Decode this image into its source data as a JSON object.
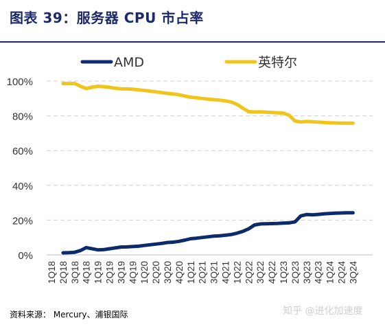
{
  "header": {
    "title": "图表 39：服务器 CPU 市占率"
  },
  "footer": {
    "source": "资料来源：  Mercury、浦银国际",
    "watermark": "知乎 @进化加速度"
  },
  "colors": {
    "amd": "#0c2b6b",
    "intel": "#f0c419",
    "grid": "#d0d0d0",
    "title": "#1c2a6b"
  },
  "chart_data": {
    "type": "line",
    "title": "",
    "xlabel": "",
    "ylabel": "",
    "ylim": [
      0,
      100
    ],
    "yticks": [
      "0%",
      "20%",
      "40%",
      "60%",
      "80%",
      "100%"
    ],
    "ytick_values": [
      0,
      20,
      40,
      60,
      80,
      100
    ],
    "grid": "horizontal-dashed",
    "legend": "top",
    "categories": [
      "1Q18",
      "2Q18",
      "3Q18",
      "4Q18",
      "1Q19",
      "2Q19",
      "3Q19",
      "4Q19",
      "1Q20",
      "2Q20",
      "3Q20",
      "4Q20",
      "1Q21",
      "2Q21",
      "3Q21",
      "4Q21",
      "1Q22",
      "2Q22",
      "3Q22",
      "4Q22",
      "1Q23",
      "2Q23",
      "3Q23",
      "4Q23",
      "1Q24",
      "2Q24",
      "3Q24"
    ],
    "x": [
      "2Q18",
      "2Q18",
      "3Q18",
      "3Q18",
      "4Q18",
      "4Q18",
      "1Q19",
      "1Q19",
      "2Q19",
      "2Q19",
      "3Q19",
      "3Q19",
      "4Q19",
      "4Q19",
      "1Q20",
      "1Q20",
      "2Q20",
      "2Q20",
      "3Q20",
      "3Q20",
      "4Q20",
      "4Q20",
      "1Q21",
      "1Q21",
      "2Q21",
      "2Q21",
      "3Q21",
      "3Q21",
      "4Q21",
      "4Q21",
      "1Q22",
      "1Q22",
      "2Q22",
      "2Q22",
      "3Q22",
      "3Q22",
      "4Q22",
      "4Q22",
      "1Q23",
      "1Q23",
      "2Q23",
      "2Q23",
      "3Q23",
      "3Q23",
      "4Q23",
      "4Q23",
      "1Q24",
      "1Q24",
      "2Q24",
      "2Q24",
      "3Q24"
    ],
    "series": [
      {
        "name": "AMD",
        "color": "#0c2b6b",
        "values": [
          1.2,
          1.3,
          1.5,
          2.5,
          4.2,
          3.5,
          2.9,
          3.0,
          3.5,
          4.0,
          4.5,
          4.6,
          4.8,
          5.0,
          5.4,
          5.8,
          6.2,
          6.6,
          7.1,
          7.3,
          7.8,
          8.5,
          9.3,
          9.6,
          10.0,
          10.4,
          10.8,
          11.0,
          11.3,
          11.7,
          12.5,
          13.5,
          15.0,
          17.2,
          17.8,
          17.9,
          18.0,
          18.1,
          18.3,
          18.4,
          19.0,
          22.4,
          23.2,
          23.0,
          23.3,
          23.6,
          23.8,
          24.0,
          24.1,
          24.2,
          24.2
        ]
      },
      {
        "name": "英特尔",
        "color": "#f0c419",
        "values": [
          98.6,
          98.5,
          98.6,
          97.0,
          95.7,
          96.5,
          97.0,
          96.8,
          96.4,
          95.9,
          95.5,
          95.5,
          95.3,
          95.0,
          94.6,
          94.2,
          93.8,
          93.4,
          92.9,
          92.6,
          92.1,
          91.4,
          90.7,
          90.4,
          90.0,
          89.6,
          89.3,
          89.0,
          88.6,
          87.9,
          86.6,
          84.4,
          82.4,
          82.2,
          82.3,
          82.1,
          81.9,
          81.7,
          81.5,
          80.3,
          77.0,
          76.5,
          76.8,
          76.6,
          76.4,
          76.2,
          76.0,
          75.9,
          75.8,
          75.8,
          75.8
        ]
      }
    ]
  }
}
